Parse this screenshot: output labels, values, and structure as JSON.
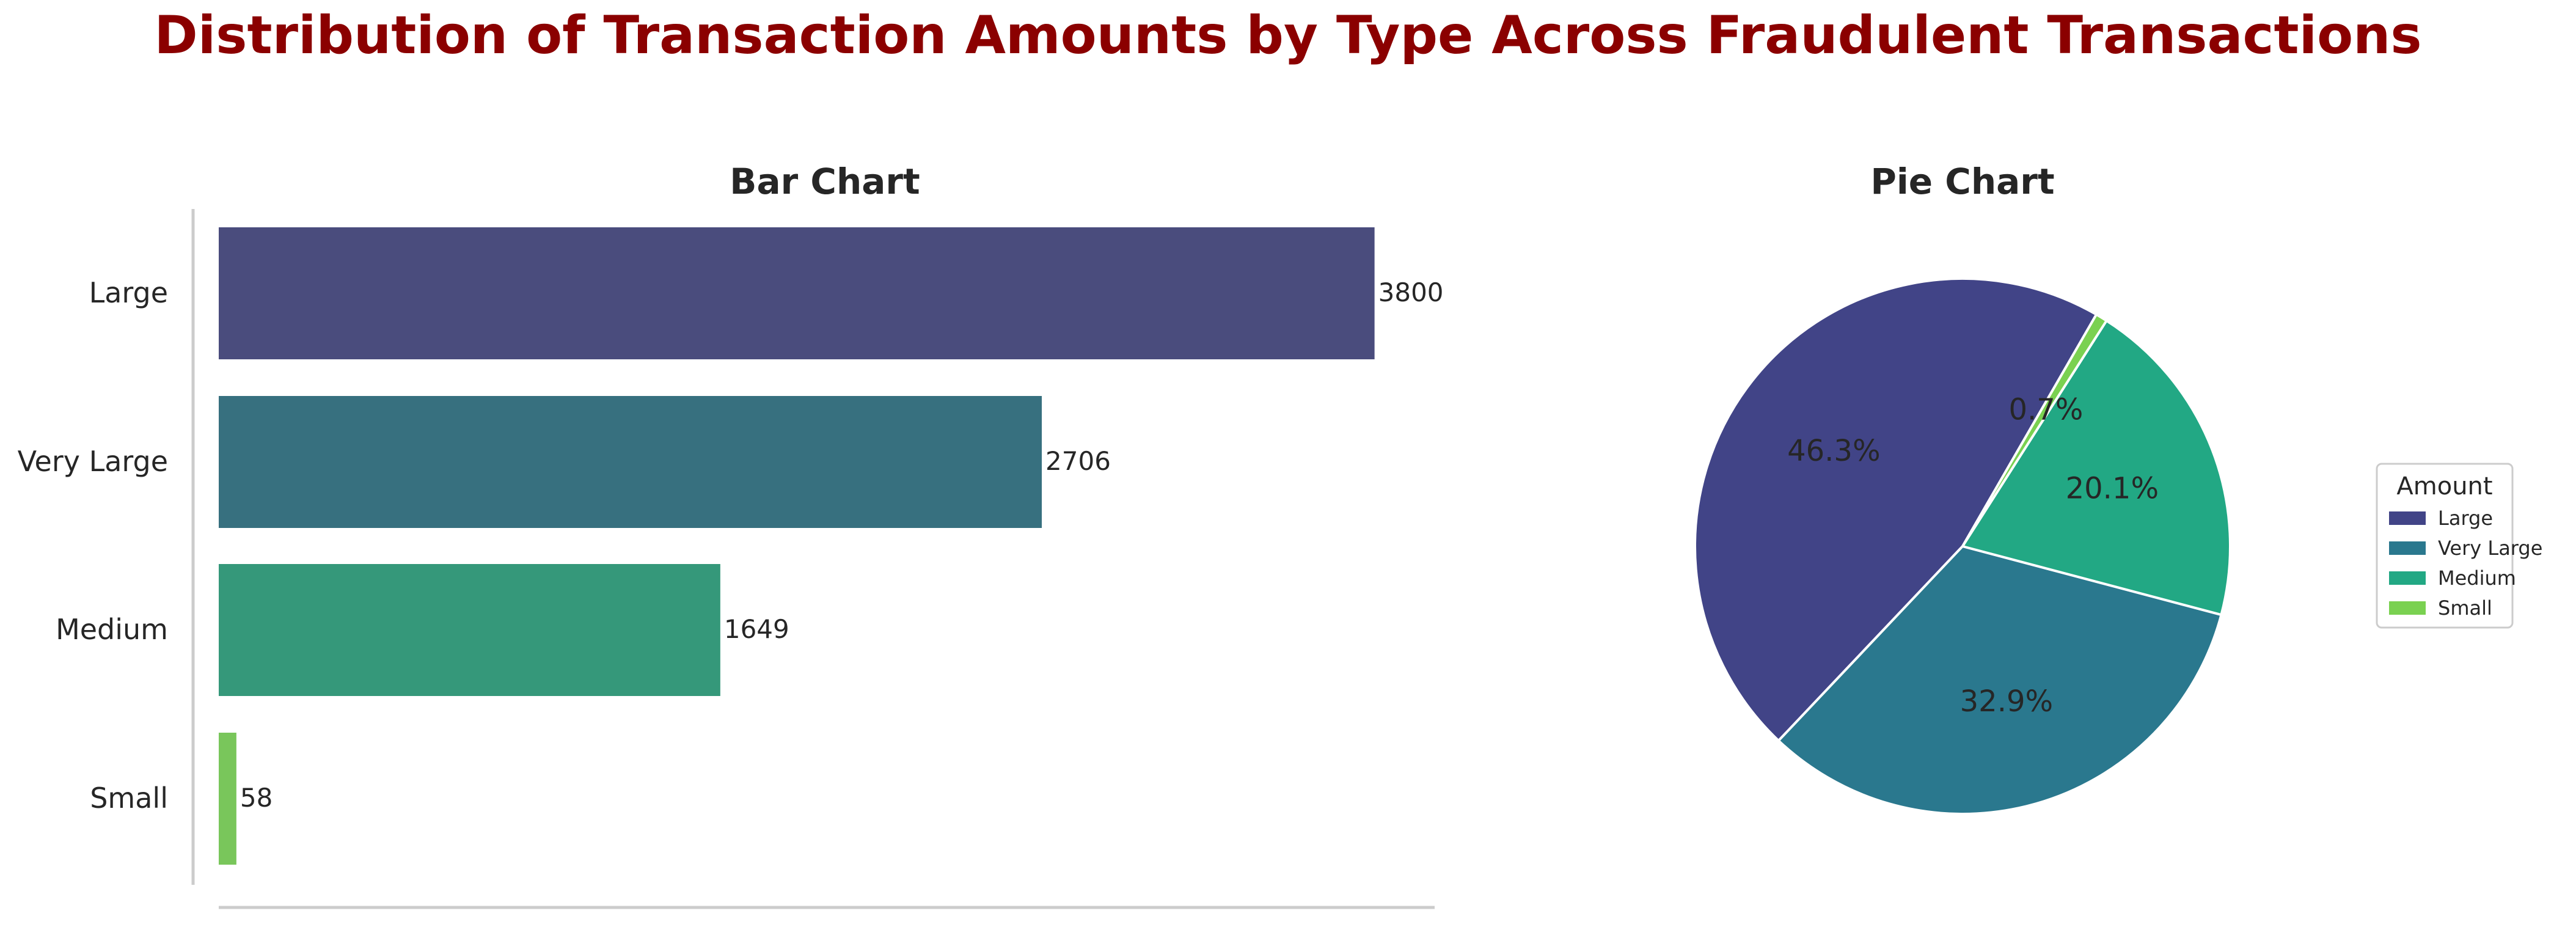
{
  "figure": {
    "title": "Distribution of Transaction Amounts by Type Across Fraudulent Transactions",
    "title_color": "#8b0000"
  },
  "chart_data": [
    {
      "type": "bar",
      "orientation": "horizontal",
      "title": "Bar Chart",
      "categories": [
        "Large",
        "Very Large",
        "Medium",
        "Small"
      ],
      "values": [
        3800,
        2706,
        1649,
        58
      ],
      "value_labels": [
        "3800",
        "2706",
        "1649",
        "58"
      ],
      "colors": [
        "#4a4c7d",
        "#37707f",
        "#35987a",
        "#79c65b"
      ],
      "xlim": [
        0,
        4000
      ],
      "grid": false
    },
    {
      "type": "pie",
      "title": "Pie Chart",
      "labels": [
        "Large",
        "Very Large",
        "Medium",
        "Small"
      ],
      "values": [
        3800,
        2706,
        1649,
        58
      ],
      "percent_labels": [
        "46.3%",
        "32.9%",
        "20.1%",
        "0.7%"
      ],
      "colors": [
        "#414487",
        "#2a788e",
        "#22a884",
        "#7ad151"
      ],
      "start_angle_deg": 60,
      "legend": {
        "title": "Amount",
        "placement": "right",
        "entries": [
          "Large",
          "Very Large",
          "Medium",
          "Small"
        ]
      }
    }
  ]
}
